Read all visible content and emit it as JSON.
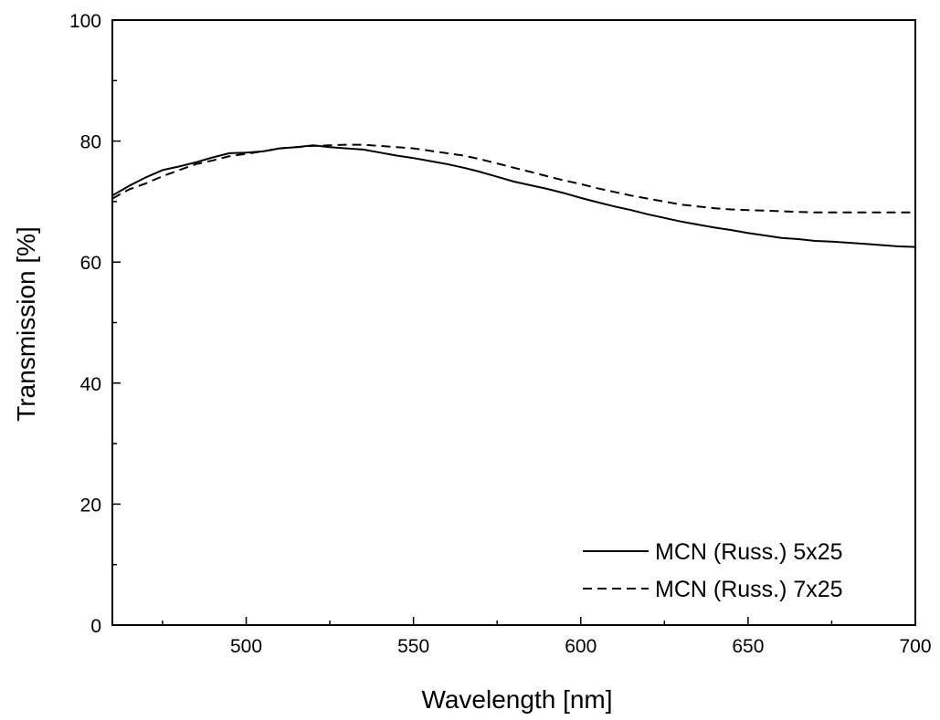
{
  "chart_data": {
    "type": "line",
    "title": "",
    "xlabel": "Wavelength [nm]",
    "ylabel": "Transmission [%]",
    "xlim": [
      460,
      700
    ],
    "ylim": [
      0,
      100
    ],
    "x_ticks": [
      500,
      550,
      600,
      650,
      700
    ],
    "y_ticks": [
      0,
      20,
      40,
      60,
      80,
      100
    ],
    "grid": false,
    "legend_position": "bottom-right",
    "series": [
      {
        "name": "MCN (Russ.) 5x25",
        "line_style": "solid",
        "color": "#000000",
        "x": [
          460,
          465,
          470,
          475,
          480,
          485,
          490,
          495,
          500,
          505,
          510,
          515,
          520,
          525,
          530,
          535,
          540,
          545,
          550,
          555,
          560,
          565,
          570,
          575,
          580,
          585,
          590,
          595,
          600,
          605,
          610,
          615,
          620,
          625,
          630,
          635,
          640,
          645,
          650,
          655,
          660,
          665,
          670,
          675,
          680,
          685,
          690,
          695,
          700
        ],
        "y": [
          71.0,
          72.6,
          74.0,
          75.2,
          75.8,
          76.5,
          77.3,
          78.0,
          78.1,
          78.3,
          78.8,
          79.0,
          79.3,
          79.0,
          78.8,
          78.6,
          78.1,
          77.6,
          77.2,
          76.7,
          76.2,
          75.6,
          74.9,
          74.1,
          73.3,
          72.7,
          72.1,
          71.4,
          70.6,
          69.9,
          69.2,
          68.6,
          67.9,
          67.3,
          66.7,
          66.2,
          65.7,
          65.3,
          64.8,
          64.4,
          64.0,
          63.8,
          63.5,
          63.4,
          63.2,
          63.0,
          62.8,
          62.6,
          62.5
        ]
      },
      {
        "name": "MCN (Russ.) 7x25",
        "line_style": "dashed",
        "color": "#000000",
        "x": [
          460,
          465,
          470,
          475,
          480,
          485,
          490,
          495,
          500,
          505,
          510,
          515,
          520,
          525,
          530,
          535,
          540,
          545,
          550,
          555,
          560,
          565,
          570,
          575,
          580,
          585,
          590,
          595,
          600,
          605,
          610,
          615,
          620,
          625,
          630,
          635,
          640,
          645,
          650,
          655,
          660,
          665,
          670,
          675,
          680,
          685,
          690,
          695,
          700
        ],
        "y": [
          70.5,
          72.0,
          73.0,
          74.2,
          75.2,
          76.2,
          76.8,
          77.5,
          77.9,
          78.3,
          78.8,
          79.0,
          79.2,
          79.3,
          79.4,
          79.4,
          79.2,
          79.0,
          78.8,
          78.4,
          78.0,
          77.6,
          77.0,
          76.3,
          75.6,
          74.9,
          74.2,
          73.5,
          72.9,
          72.2,
          71.6,
          71.0,
          70.5,
          70.0,
          69.5,
          69.2,
          68.9,
          68.7,
          68.6,
          68.5,
          68.4,
          68.3,
          68.2,
          68.2,
          68.2,
          68.2,
          68.2,
          68.2,
          68.2
        ]
      }
    ]
  }
}
